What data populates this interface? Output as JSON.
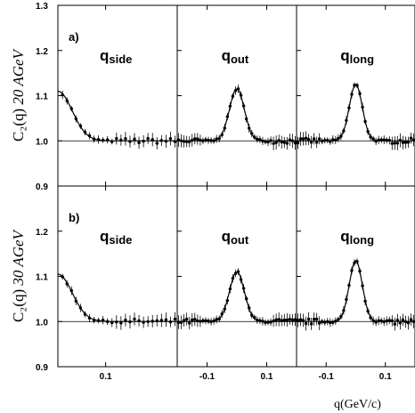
{
  "chart_data": {
    "type": "scatter",
    "layout": "2 rows x 3 columns, shared y-axis per row, line fit over data points",
    "ylim": [
      0.9,
      1.3
    ],
    "yticks": [
      "0.9",
      "1.0",
      "1.1",
      "1.2",
      "1.3"
    ],
    "xlabel": "q(GeV/c)",
    "rows": [
      {
        "tag": "a)",
        "ylabel": "C₂(q)  20 AGeV",
        "ylabel_main": "C₂(q)",
        "ylabel_energy": "20 AGeV",
        "panels": [
          {
            "q": "q",
            "sub": "side",
            "xrange": [
              0,
              0.25
            ],
            "shape": "gaussian",
            "center": 0.0,
            "height": 0.11,
            "width": 0.03,
            "baseline": 1.0
          },
          {
            "q": "q",
            "sub": "out",
            "xrange": [
              -0.2,
              0.2
            ],
            "shape": "gaussian",
            "center": 0.0,
            "height": 0.115,
            "width": 0.025,
            "baseline": 1.0
          },
          {
            "q": "q",
            "sub": "long",
            "xrange": [
              -0.2,
              0.2
            ],
            "shape": "gaussian",
            "center": 0.0,
            "height": 0.125,
            "width": 0.022,
            "baseline": 1.0
          }
        ]
      },
      {
        "tag": "b)",
        "ylabel": "C₂(q)  30 AGeV",
        "ylabel_main": "C₂(q)",
        "ylabel_energy": "30 AGeV",
        "panels": [
          {
            "q": "q",
            "sub": "side",
            "xrange": [
              0,
              0.25
            ],
            "shape": "gaussian",
            "center": 0.0,
            "height": 0.105,
            "width": 0.03,
            "baseline": 1.0
          },
          {
            "q": "q",
            "sub": "out",
            "xrange": [
              -0.2,
              0.2
            ],
            "shape": "gaussian",
            "center": 0.0,
            "height": 0.11,
            "width": 0.025,
            "baseline": 1.0
          },
          {
            "q": "q",
            "sub": "long",
            "xrange": [
              -0.2,
              0.2
            ],
            "shape": "gaussian",
            "center": 0.0,
            "height": 0.135,
            "width": 0.022,
            "baseline": 1.0
          }
        ]
      }
    ],
    "xticks": [
      [
        "0.1"
      ],
      [
        "-0.1",
        "0.1"
      ],
      [
        "-0.1",
        "0.1"
      ]
    ]
  }
}
